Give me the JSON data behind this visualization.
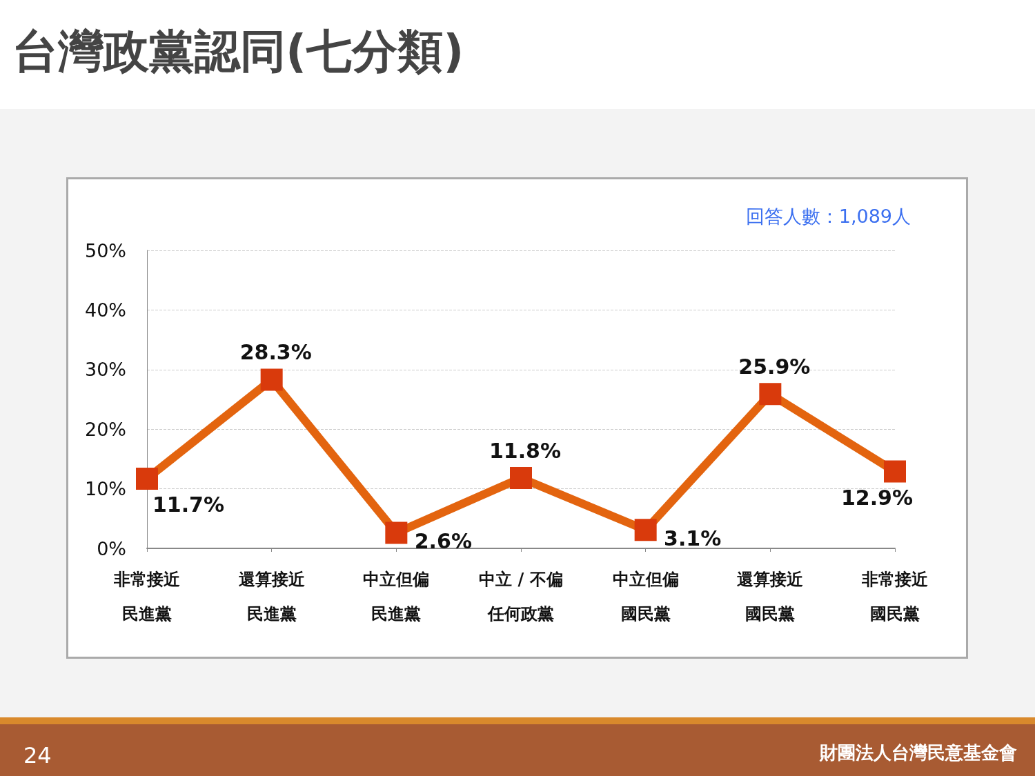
{
  "chart_data": {
    "type": "line",
    "title": "台灣政黨認同(七分類)",
    "categories": [
      "非常接近民進黨",
      "還算接近民進黨",
      "中立但偏民進黨",
      "中立 / 不偏任何政黨",
      "中立但偏國民黨",
      "還算接近國民黨",
      "非常接近國民黨"
    ],
    "series": [
      {
        "color": "#e3640f",
        "colors": [
          "#d93a0c",
          "#d93a0c",
          "#d93a0c",
          "#d93a0c",
          "#d93a0c",
          "#d93a0c",
          "#d93a0c"
        ],
        "values": [
          11.7,
          28.3,
          2.6,
          11.8,
          3.1,
          25.9,
          12.9
        ],
        "value_labels": [
          "11.7%",
          "28.3%",
          "2.6%",
          "11.8%",
          "3.1%",
          "25.9%",
          "12.9%"
        ]
      }
    ],
    "ylim": [
      0,
      50
    ],
    "yticks": [
      {
        "value": 0,
        "label": "0%"
      },
      {
        "value": 10,
        "label": "10%"
      },
      {
        "value": 20,
        "label": "20%"
      },
      {
        "value": 30,
        "label": "30%"
      },
      {
        "value": 40,
        "label": "40%"
      },
      {
        "value": 50,
        "label": "50%"
      }
    ],
    "grid": "y",
    "marker": "square",
    "line_style": "solid",
    "annotations": [
      "回答人數：1,089人",
      "24",
      "財團法人台灣民意基金會"
    ]
  }
}
